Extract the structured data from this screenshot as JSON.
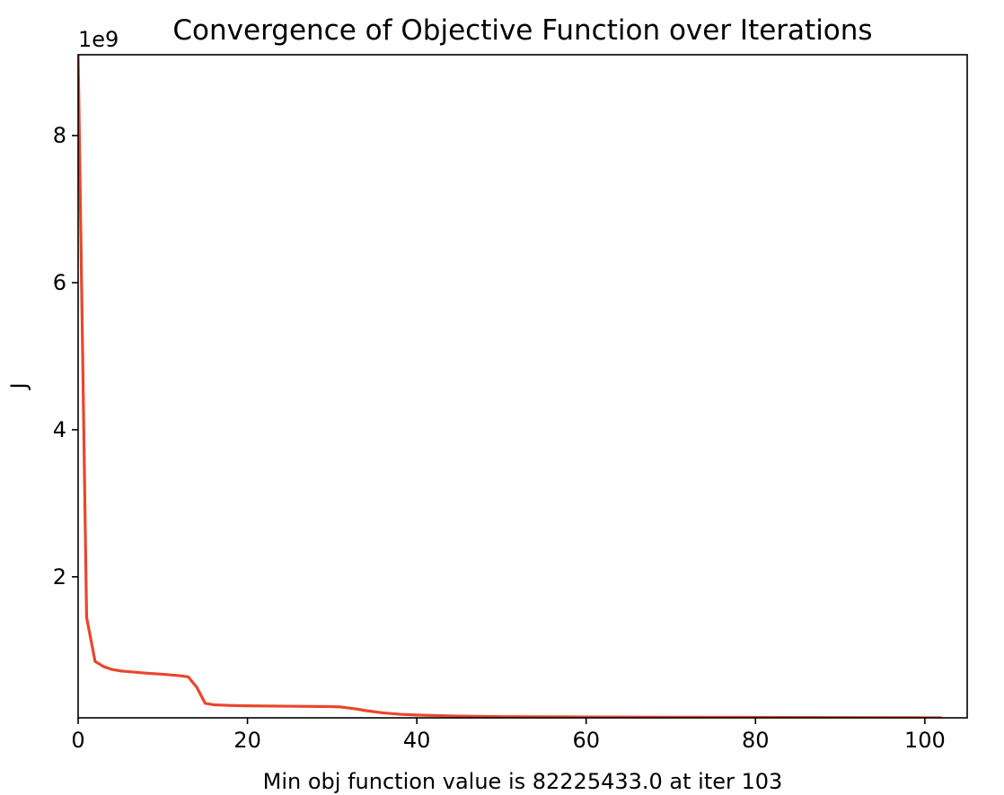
{
  "chart_data": {
    "type": "line",
    "title": "Convergence of Objective Function over Iterations",
    "xlabel": "Min obj function value is 82225433.0 at iter 103",
    "ylabel": "J",
    "y_offset_label": "1e9",
    "xlim": [
      0,
      105
    ],
    "ylim": [
      82225433.0,
      9100000000
    ],
    "x_ticks": [
      0,
      20,
      40,
      60,
      80,
      100
    ],
    "x_tick_labels": [
      "0",
      "20",
      "40",
      "60",
      "80",
      "100"
    ],
    "y_ticks": [
      2000000000,
      4000000000,
      6000000000,
      8000000000
    ],
    "y_tick_labels": [
      "2",
      "4",
      "6",
      "8"
    ],
    "grid": false,
    "line_color": "#e8472b",
    "series": [
      {
        "x": [
          0,
          1,
          2,
          3,
          4,
          5,
          6,
          8,
          10,
          12,
          13,
          14,
          15,
          16,
          18,
          20,
          25,
          30,
          31,
          33,
          34,
          36,
          38,
          40,
          45,
          50,
          60,
          70,
          80,
          90,
          100,
          102
        ],
        "y": [
          9100000000,
          1450000000,
          850000000,
          780000000,
          740000000,
          720000000,
          710000000,
          690000000,
          675000000,
          655000000,
          640000000,
          500000000,
          280000000,
          260000000,
          250000000,
          245000000,
          240000000,
          235000000,
          230000000,
          200000000,
          180000000,
          150000000,
          130000000,
          120000000,
          105000000,
          98000000,
          94000000,
          90000000,
          88000000,
          86000000,
          83000000,
          82225433
        ]
      }
    ]
  }
}
